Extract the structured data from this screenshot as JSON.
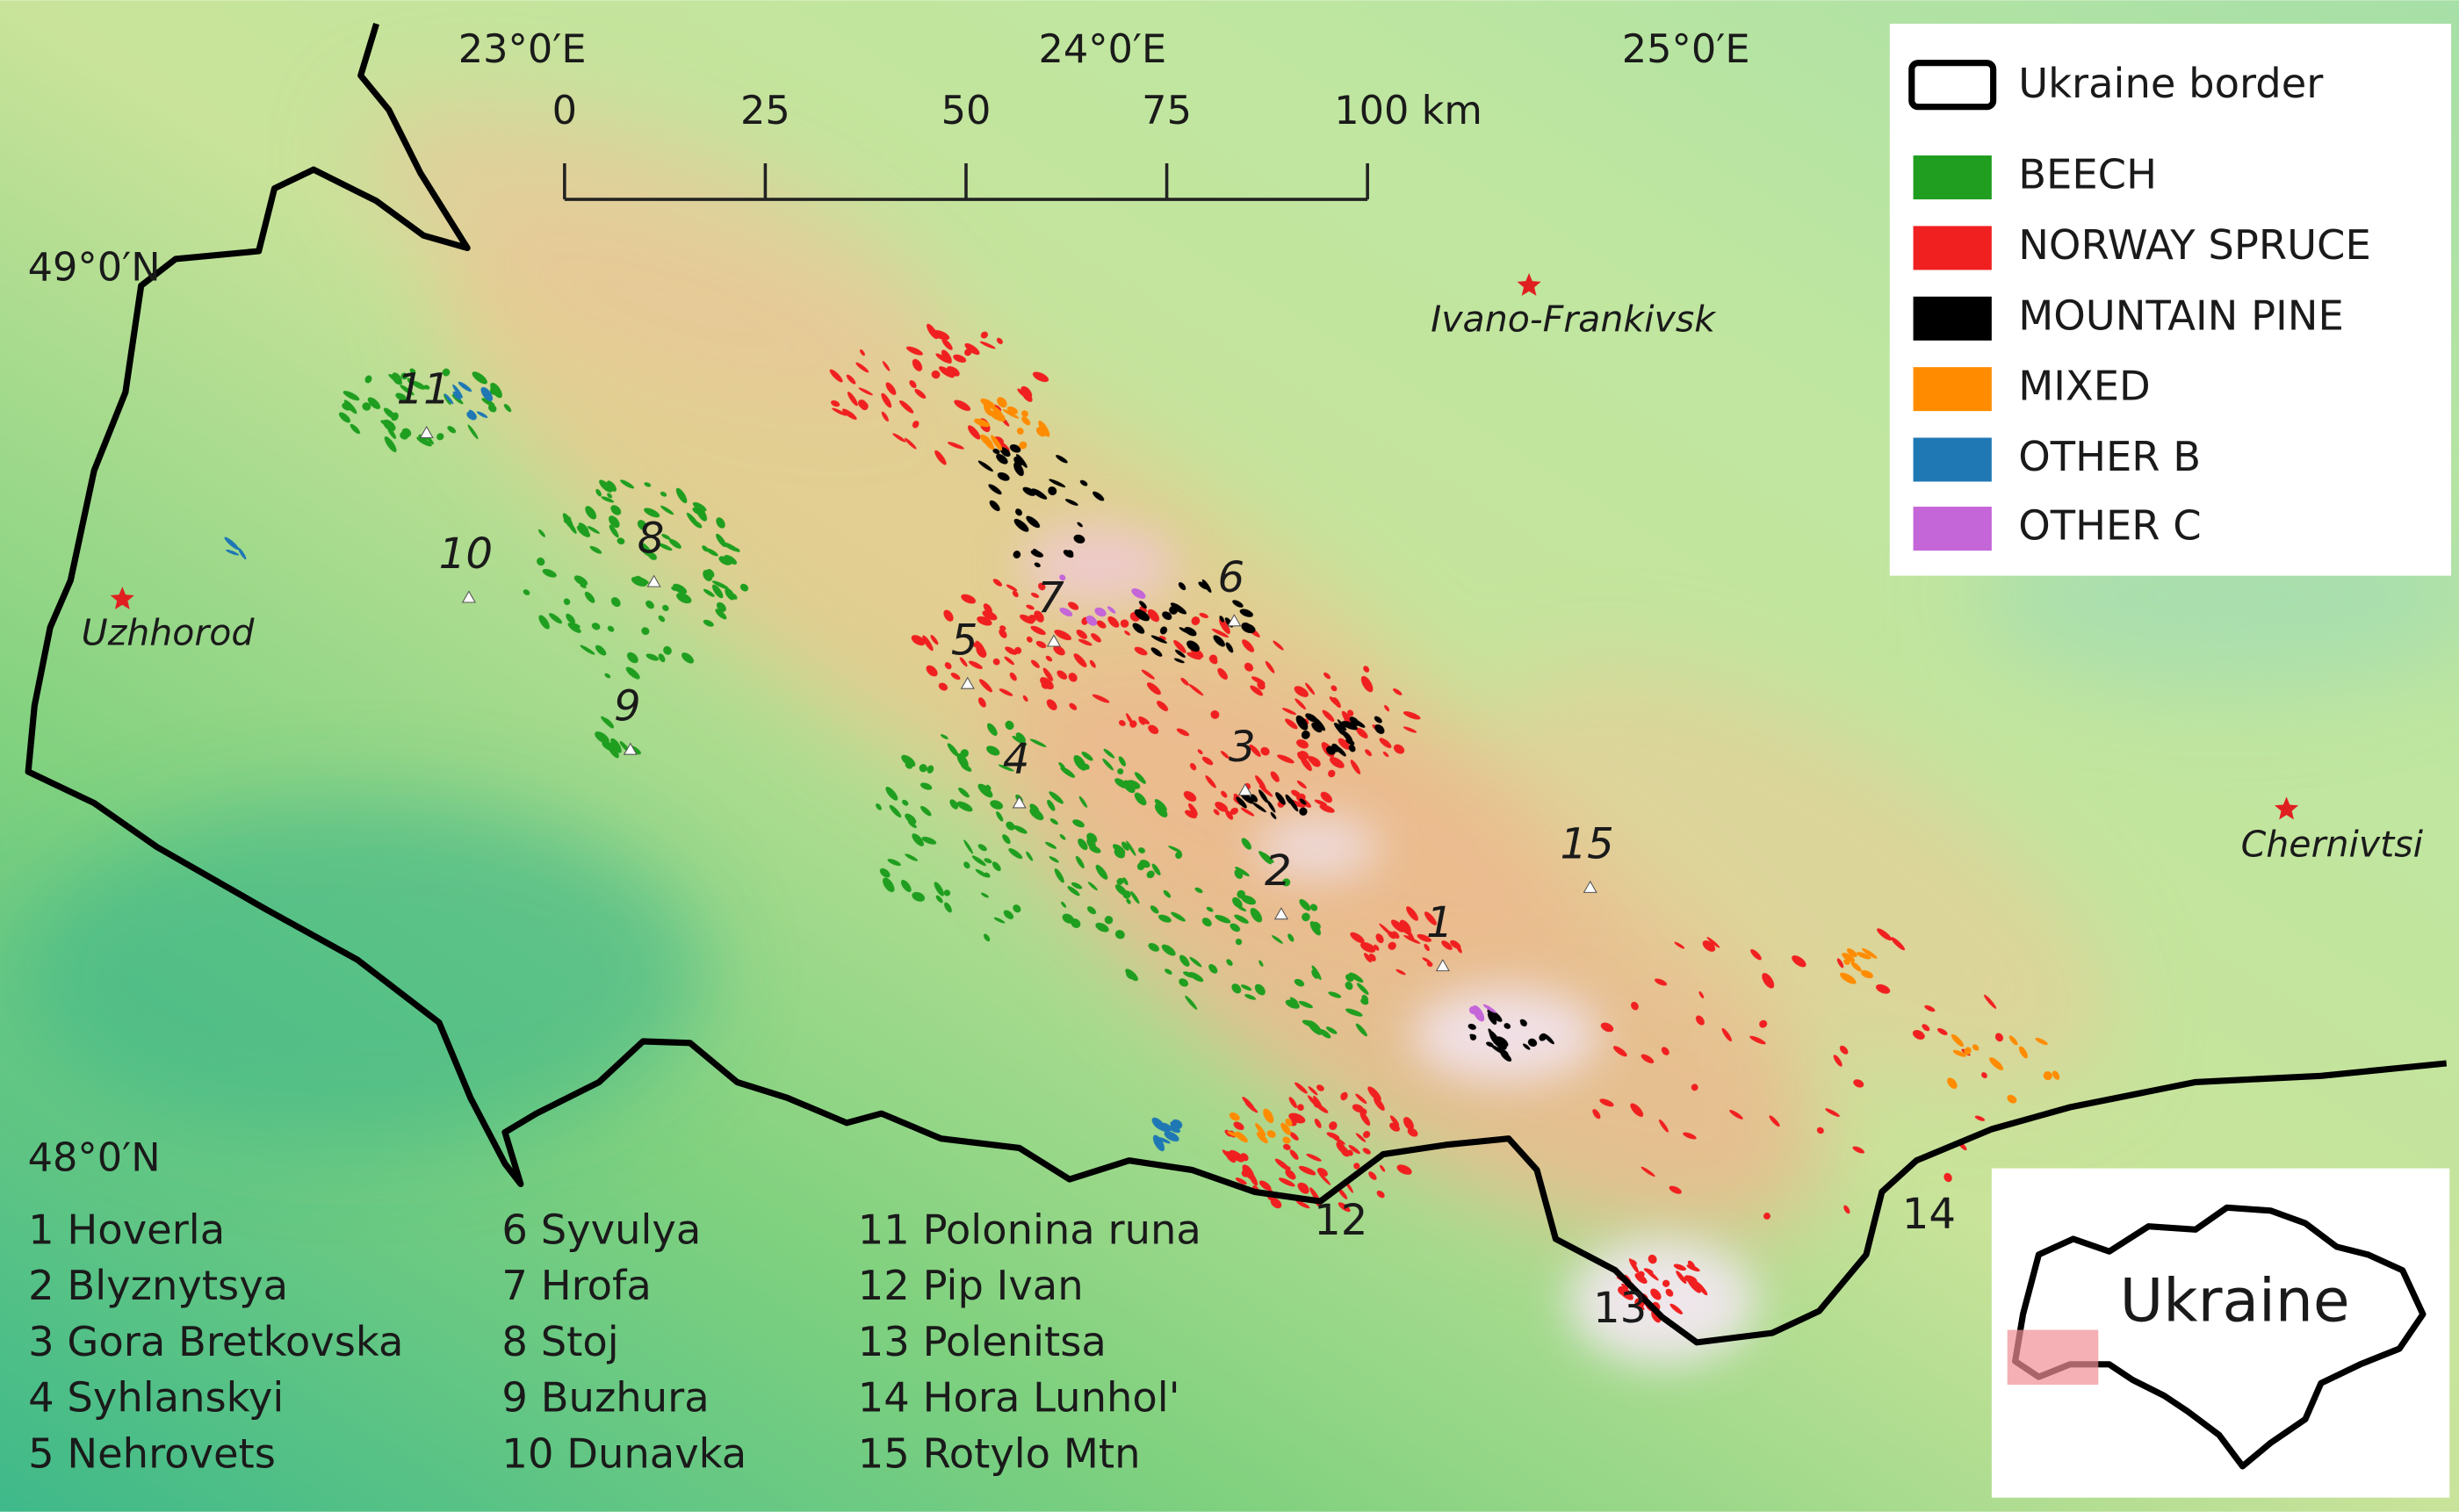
{
  "map": {
    "longitude_labels": [
      "23°0′E",
      "24°0′E",
      "25°0′E"
    ],
    "latitude_labels": [
      "49°0′N",
      "48°0′N"
    ],
    "scale_bar": [
      "0",
      "25",
      "50",
      "75",
      "100 km"
    ],
    "border_legend": "Ukraine border",
    "forest_types": [
      {
        "label": "BEECH",
        "color": "#1f9e1f"
      },
      {
        "label": "NORWAY SPRUCE",
        "color": "#f02020"
      },
      {
        "label": "MOUNTAIN PINE",
        "color": "#000000"
      },
      {
        "label": "MIXED",
        "color": "#ff8c00"
      },
      {
        "label": "OTHER B",
        "color": "#1f78b4"
      },
      {
        "label": "OTHER C",
        "color": "#c465d8"
      }
    ],
    "cities": [
      "Ivano-Frankivsk",
      "Uzhhorod",
      "Chernivtsi"
    ],
    "peak_numbers": [
      "1",
      "2",
      "3",
      "4",
      "5",
      "6",
      "7",
      "8",
      "9",
      "10",
      "11",
      "12",
      "13",
      "14",
      "15"
    ],
    "peaks": [
      "1 Hoverla",
      "2 Blyznytsya",
      "3 Gora Bretkovska",
      "4 Syhlanskyi",
      "5 Nehrovets",
      "6 Syvulya",
      "7 Hrofa",
      "8 Stoj",
      "9 Buzhura",
      "10 Dunavka",
      "11 Polonina runa",
      "12 Pip Ivan",
      "13 Polenitsa",
      "14 Hora Lunhol'",
      "15 Rotylo Mtn"
    ],
    "inset_label": "Ukraine"
  }
}
